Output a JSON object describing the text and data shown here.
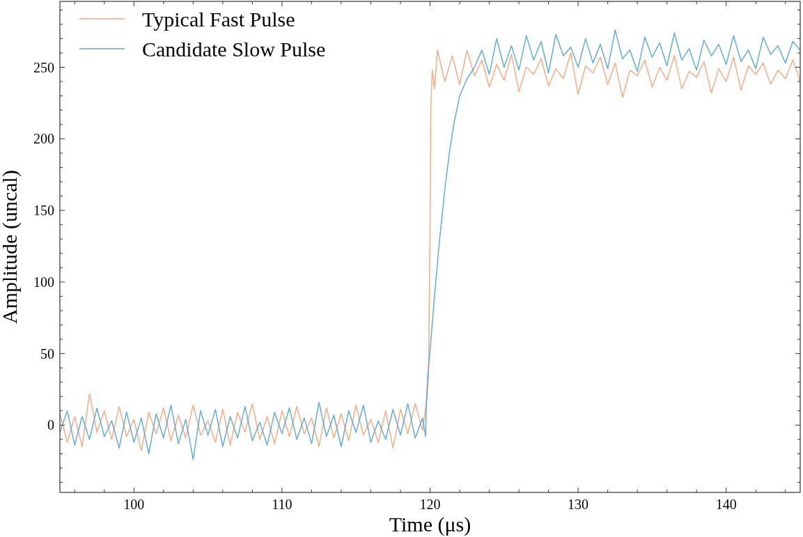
{
  "chart_data": {
    "type": "line",
    "xlabel": "Time (μs)",
    "ylabel": "Amplitude (uncal)",
    "xlim": [
      95,
      145
    ],
    "ylim": [
      -47,
      296
    ],
    "xticks": [
      {
        "value": 96,
        "label": null
      },
      {
        "value": 98,
        "label": null
      },
      100,
      {
        "value": 102,
        "label": null
      },
      {
        "value": 104,
        "label": null
      },
      {
        "value": 106,
        "label": null
      },
      {
        "value": 108,
        "label": null
      },
      110,
      {
        "value": 112,
        "label": null
      },
      {
        "value": 114,
        "label": null
      },
      {
        "value": 116,
        "label": null
      },
      {
        "value": 118,
        "label": null
      },
      120,
      {
        "value": 122,
        "label": null
      },
      {
        "value": 124,
        "label": null
      },
      {
        "value": 126,
        "label": null
      },
      {
        "value": 128,
        "label": null
      },
      130,
      {
        "value": 132,
        "label": null
      },
      {
        "value": 134,
        "label": null
      },
      {
        "value": 136,
        "label": null
      },
      {
        "value": 138,
        "label": null
      },
      140,
      {
        "value": 142,
        "label": null
      },
      {
        "value": 144,
        "label": null
      }
    ],
    "yticks": [
      {
        "value": -40,
        "label": null
      },
      {
        "value": -30,
        "label": null
      },
      {
        "value": -20,
        "label": null
      },
      {
        "value": -10,
        "label": null
      },
      0,
      {
        "value": 10,
        "label": null
      },
      {
        "value": 20,
        "label": null
      },
      {
        "value": 30,
        "label": null
      },
      {
        "value": 40,
        "label": null
      },
      50,
      {
        "value": 60,
        "label": null
      },
      {
        "value": 70,
        "label": null
      },
      {
        "value": 80,
        "label": null
      },
      {
        "value": 90,
        "label": null
      },
      100,
      {
        "value": 110,
        "label": null
      },
      {
        "value": 120,
        "label": null
      },
      {
        "value": 130,
        "label": null
      },
      {
        "value": 140,
        "label": null
      },
      150,
      {
        "value": 160,
        "label": null
      },
      {
        "value": 170,
        "label": null
      },
      {
        "value": 180,
        "label": null
      },
      {
        "value": 190,
        "label": null
      },
      200,
      {
        "value": 210,
        "label": null
      },
      {
        "value": 220,
        "label": null
      },
      {
        "value": 230,
        "label": null
      },
      {
        "value": 240,
        "label": null
      },
      250,
      {
        "value": 260,
        "label": null
      },
      {
        "value": 270,
        "label": null
      },
      {
        "value": 280,
        "label": null
      },
      {
        "value": 290,
        "label": null
      }
    ],
    "grid": false,
    "legend": "top left",
    "marker": "none",
    "line_style": "solid",
    "series": [
      {
        "name": "Typical Fast Pulse",
        "color": "#f2a77e",
        "x": [
          95,
          95.5,
          96,
          96.5,
          97,
          97.5,
          98,
          98.5,
          99,
          99.5,
          100,
          100.5,
          101,
          101.5,
          102,
          102.5,
          103,
          103.5,
          104,
          104.5,
          105,
          105.5,
          106,
          106.5,
          107,
          107.5,
          108,
          108.5,
          109,
          109.5,
          110,
          110.5,
          111,
          111.5,
          112,
          112.5,
          113,
          113.5,
          114,
          114.5,
          115,
          115.5,
          116,
          116.5,
          117,
          117.5,
          118,
          118.5,
          119,
          119.5,
          119.7,
          119.8,
          119.9,
          120.0,
          120.05,
          120.15,
          120.3,
          120.5,
          121,
          121.5,
          122,
          122.5,
          123,
          123.5,
          124,
          124.5,
          125,
          125.5,
          126,
          126.5,
          127,
          127.5,
          128,
          128.5,
          129,
          129.5,
          130,
          130.5,
          131,
          131.5,
          132,
          132.5,
          133,
          133.5,
          134,
          134.5,
          135,
          135.5,
          136,
          136.5,
          137,
          137.5,
          138,
          138.5,
          139,
          139.5,
          140,
          140.5,
          141,
          141.5,
          142,
          142.5,
          143,
          143.5,
          144,
          144.5,
          145
        ],
        "values": [
          8,
          -12,
          6,
          -15,
          22,
          -5,
          10,
          -10,
          13,
          -8,
          4,
          -18,
          9,
          -6,
          12,
          -11,
          7,
          -9,
          14,
          -7,
          3,
          -12,
          11,
          -14,
          9,
          -5,
          15,
          -10,
          6,
          -13,
          10,
          -8,
          13,
          -6,
          5,
          -15,
          12,
          -9,
          8,
          -11,
          14,
          -7,
          4,
          -12,
          10,
          -16,
          11,
          -6,
          15,
          -4,
          12,
          20,
          35,
          140,
          220,
          248,
          235,
          262,
          240,
          258,
          238,
          262,
          244,
          255,
          236,
          252,
          241,
          259,
          233,
          250,
          245,
          256,
          237,
          249,
          242,
          260,
          231,
          251,
          246,
          257,
          238,
          253,
          229,
          248,
          244,
          255,
          236,
          250,
          241,
          258,
          235,
          247,
          243,
          254,
          232,
          249,
          240,
          257,
          234,
          251,
          245,
          253,
          238,
          248,
          242,
          255,
          240
        ]
      },
      {
        "name": "Candidate Slow Pulse",
        "color": "#5aa7d6",
        "x": [
          95,
          95.5,
          96,
          96.5,
          97,
          97.5,
          98,
          98.5,
          99,
          99.5,
          100,
          100.5,
          101,
          101.5,
          102,
          102.5,
          103,
          103.5,
          104,
          104.5,
          105,
          105.5,
          106,
          106.5,
          107,
          107.5,
          108,
          108.5,
          109,
          109.5,
          110,
          110.5,
          111,
          111.5,
          112,
          112.5,
          113,
          113.5,
          114,
          114.5,
          115,
          115.5,
          116,
          116.5,
          117,
          117.5,
          118,
          118.5,
          119,
          119.5,
          119.7,
          119.75,
          119.85,
          120.0,
          120.3,
          120.6,
          121.0,
          121.3,
          121.6,
          122.0,
          122.5,
          123.0,
          123.5,
          124,
          124.5,
          125,
          125.5,
          126,
          126.5,
          127,
          127.5,
          128,
          128.5,
          129,
          129.5,
          130,
          130.5,
          131,
          131.5,
          132,
          132.5,
          133,
          133.5,
          134,
          134.5,
          135,
          135.5,
          136,
          136.5,
          137,
          137.5,
          138,
          138.5,
          139,
          139.5,
          140,
          140.5,
          141,
          141.5,
          142,
          142.5,
          143,
          143.5,
          144,
          144.5,
          145
        ],
        "values": [
          -5,
          10,
          -14,
          6,
          -10,
          12,
          -8,
          3,
          -16,
          9,
          -12,
          5,
          -20,
          8,
          -9,
          14,
          -13,
          4,
          -24,
          10,
          -7,
          11,
          -15,
          6,
          -9,
          13,
          -11,
          2,
          -14,
          9,
          -6,
          12,
          -10,
          5,
          -13,
          16,
          -8,
          7,
          -15,
          10,
          -5,
          14,
          -12,
          3,
          -10,
          11,
          -7,
          15,
          -9,
          5,
          -8,
          15,
          35,
          52,
          90,
          125,
          165,
          190,
          210,
          230,
          242,
          250,
          262,
          245,
          270,
          250,
          265,
          248,
          272,
          255,
          268,
          246,
          273,
          258,
          264,
          250,
          270,
          253,
          266,
          249,
          276,
          256,
          262,
          247,
          271,
          257,
          267,
          251,
          274,
          255,
          263,
          248,
          269,
          258,
          266,
          252,
          272,
          254,
          262,
          249,
          271,
          259,
          265,
          253,
          268,
          262
        ]
      }
    ]
  }
}
